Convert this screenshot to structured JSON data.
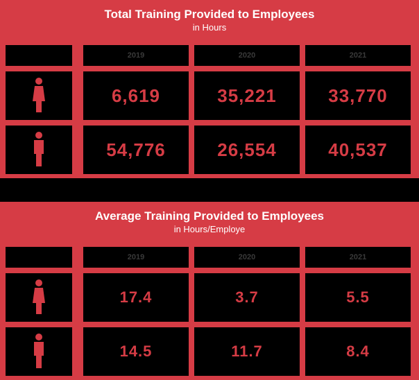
{
  "colors": {
    "accent": "#d63c45",
    "background": "#000000",
    "title_text": "#ffffff"
  },
  "icons": {
    "female": "female-person-icon",
    "male": "male-person-icon"
  },
  "chart_data": [
    {
      "type": "table",
      "title": "Total Training Provided to Employees",
      "subtitle": "in Hours",
      "columns": [
        "2019",
        "2020",
        "2021"
      ],
      "rows": [
        {
          "icon": "female-person-icon",
          "values": [
            "6,619",
            "35,221",
            "33,770"
          ]
        },
        {
          "icon": "male-person-icon",
          "values": [
            "54,776",
            "26,554",
            "40,537"
          ]
        }
      ]
    },
    {
      "type": "table",
      "title": "Average Training Provided to Employees",
      "subtitle": "in Hours/Employe",
      "columns": [
        "2019",
        "2020",
        "2021"
      ],
      "rows": [
        {
          "icon": "female-person-icon",
          "values": [
            "17.4",
            "3.7",
            "5.5"
          ]
        },
        {
          "icon": "male-person-icon",
          "values": [
            "14.5",
            "11.7",
            "8.4"
          ]
        }
      ]
    }
  ]
}
